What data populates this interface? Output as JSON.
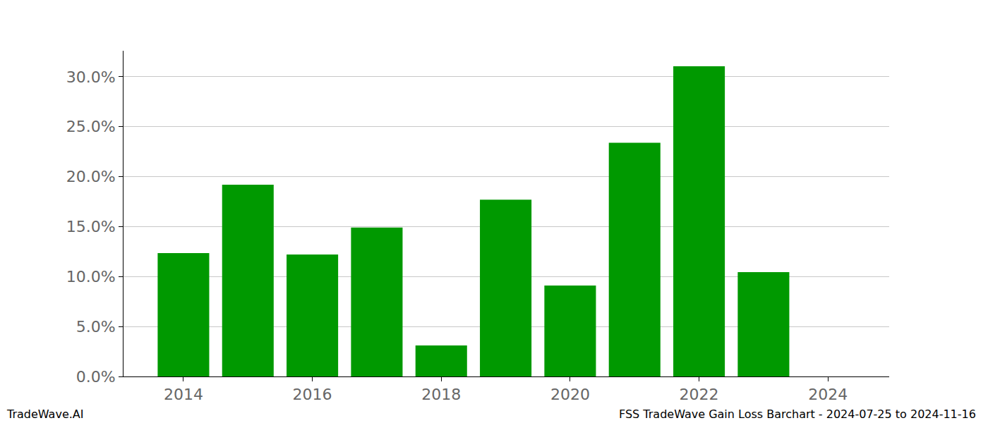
{
  "chart_data": {
    "type": "bar",
    "x": [
      2014,
      2015,
      2016,
      2017,
      2018,
      2019,
      2020,
      2021,
      2022,
      2023
    ],
    "values": [
      12.35,
      19.2,
      12.2,
      14.9,
      3.1,
      17.7,
      9.1,
      23.4,
      31.05,
      10.45
    ],
    "color": "#009900",
    "xlim": [
      2013.07,
      2024.95
    ],
    "xticks": [
      2014,
      2016,
      2018,
      2020,
      2022,
      2024
    ],
    "ylim": [
      0,
      32.6
    ],
    "yticks": [
      {
        "value": 0,
        "label": "0.0%"
      },
      {
        "value": 5,
        "label": "5.0%"
      },
      {
        "value": 10,
        "label": "10.0%"
      },
      {
        "value": 15,
        "label": "15.0%"
      },
      {
        "value": 20,
        "label": "20.0%"
      },
      {
        "value": 25,
        "label": "25.0%"
      },
      {
        "value": 30,
        "label": "30.0%"
      }
    ],
    "grid": true,
    "annotations": [
      "TradeWave.AI",
      "FSS TradeWave Gain Loss Barchart - 2024-07-25 to 2024-11-16"
    ]
  }
}
